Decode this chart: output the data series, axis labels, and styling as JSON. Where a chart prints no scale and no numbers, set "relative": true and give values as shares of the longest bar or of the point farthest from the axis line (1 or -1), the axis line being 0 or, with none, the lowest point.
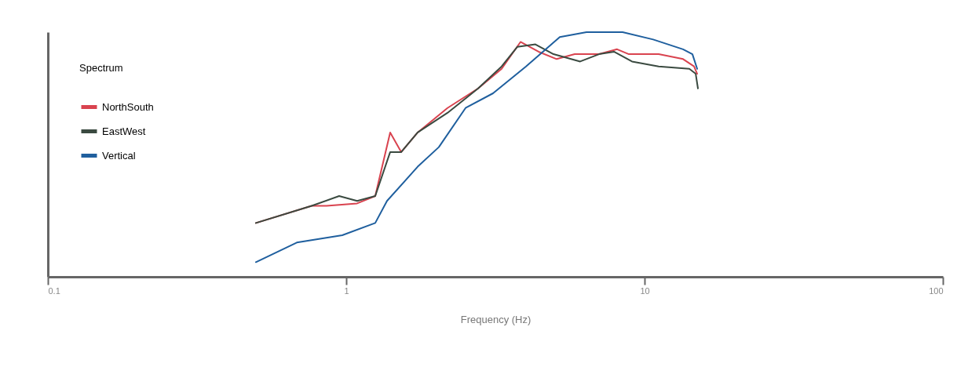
{
  "chart_data": {
    "type": "line",
    "relative": true,
    "legend_title": "Spectrum",
    "legend": "top left",
    "grid": false,
    "log": "x",
    "xlabel": "Frequency (Hz)",
    "xlim": [
      0.1,
      100
    ],
    "xticks": [
      0.1,
      1,
      10,
      100
    ],
    "line_style": "solid",
    "marker": "none",
    "series": [
      {
        "name": "NorthSouth",
        "color": "#d9434f",
        "x": [
          0.498,
          0.766,
          0.859,
          1.088,
          1.251,
          1.404,
          1.529,
          1.736,
          2.185,
          2.768,
          3.319,
          3.839,
          4.413,
          5.074,
          5.833,
          7.037,
          8.09,
          8.859,
          11.15,
          13.46,
          14.65,
          15.01
        ],
        "values": [
          0.22,
          0.29,
          0.29,
          0.3,
          0.33,
          0.59,
          0.51,
          0.59,
          0.69,
          0.77,
          0.85,
          0.96,
          0.92,
          0.89,
          0.91,
          0.91,
          0.93,
          0.91,
          0.91,
          0.89,
          0.86,
          0.83
        ]
      },
      {
        "name": "EastWest",
        "color": "#3a4a40",
        "x": [
          0.498,
          0.766,
          0.947,
          1.088,
          1.251,
          1.404,
          1.529,
          1.736,
          2.185,
          2.768,
          3.319,
          3.748,
          4.307,
          4.952,
          6.084,
          7.037,
          7.897,
          9.077,
          11.15,
          14.13,
          14.84,
          15.1
        ],
        "values": [
          0.22,
          0.29,
          0.33,
          0.31,
          0.33,
          0.51,
          0.51,
          0.59,
          0.67,
          0.77,
          0.86,
          0.94,
          0.95,
          0.91,
          0.88,
          0.91,
          0.92,
          0.88,
          0.86,
          0.85,
          0.83,
          0.77
        ]
      },
      {
        "name": "Vertical",
        "color": "#1f5f9e",
        "x": [
          0.498,
          0.683,
          0.97,
          1.251,
          1.37,
          1.736,
          2.044,
          2.512,
          3.105,
          4.006,
          5.198,
          6.389,
          8.441,
          10.69,
          13.46,
          14.47,
          15.01
        ],
        "values": [
          0.06,
          0.14,
          0.17,
          0.22,
          0.31,
          0.45,
          0.53,
          0.69,
          0.75,
          0.86,
          0.98,
          1.0,
          1.0,
          0.97,
          0.93,
          0.91,
          0.85
        ]
      }
    ]
  }
}
